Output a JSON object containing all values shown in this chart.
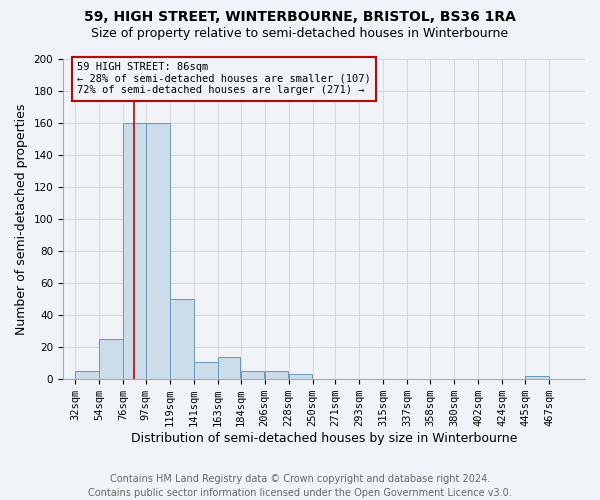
{
  "title": "59, HIGH STREET, WINTERBOURNE, BRISTOL, BS36 1RA",
  "subtitle": "Size of property relative to semi-detached houses in Winterbourne",
  "xlabel": "Distribution of semi-detached houses by size in Winterbourne",
  "ylabel": "Number of semi-detached properties",
  "footnote1": "Contains HM Land Registry data © Crown copyright and database right 2024.",
  "footnote2": "Contains public sector information licensed under the Open Government Licence v3.0.",
  "bin_labels": [
    "32sqm",
    "54sqm",
    "76sqm",
    "97sqm",
    "119sqm",
    "141sqm",
    "163sqm",
    "184sqm",
    "206sqm",
    "228sqm",
    "250sqm",
    "271sqm",
    "293sqm",
    "315sqm",
    "337sqm",
    "358sqm",
    "380sqm",
    "402sqm",
    "424sqm",
    "445sqm",
    "467sqm"
  ],
  "bar_values": [
    5,
    25,
    160,
    160,
    50,
    11,
    14,
    5,
    5,
    3,
    0,
    0,
    0,
    0,
    0,
    0,
    0,
    0,
    0,
    2,
    0
  ],
  "bar_color": "#ccdce9",
  "bar_edge_color": "#6699bb",
  "vline_color": "#cc0000",
  "annotation_box_edge": "#cc0000",
  "annotation_text_line1": "59 HIGH STREET: 86sqm",
  "annotation_text_line2": "← 28% of semi-detached houses are smaller (107)",
  "annotation_text_line3": "72% of semi-detached houses are larger (271) →",
  "ylim": [
    0,
    200
  ],
  "yticks": [
    0,
    20,
    40,
    60,
    80,
    100,
    120,
    140,
    160,
    180,
    200
  ],
  "grid_color": "#cccccc",
  "background_color": "#f0f4f8",
  "title_fontsize": 10,
  "subtitle_fontsize": 9,
  "axis_label_fontsize": 9,
  "tick_fontsize": 7.5,
  "annotation_fontsize": 7.5,
  "footnote_fontsize": 7
}
